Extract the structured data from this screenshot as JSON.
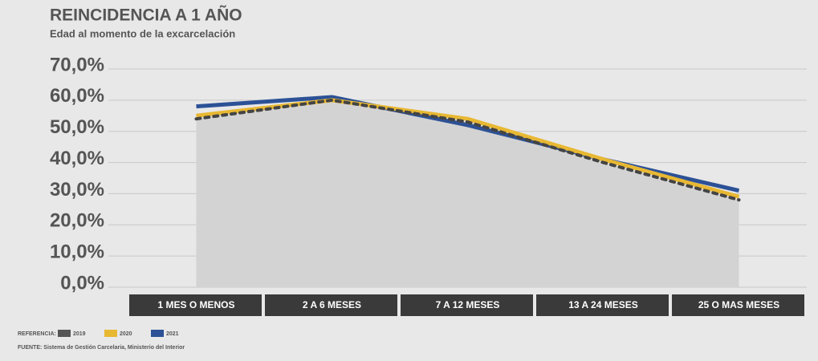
{
  "chart_data": {
    "type": "line",
    "title": "REINCIDENCIA A 1 AÑO",
    "subtitle": "Edad al momento de la excarcelación",
    "categories": [
      "1 MES O MENOS",
      "2 A 6 MESES",
      "7 A 12 MESES",
      "13 A 24 MESES",
      "25 O MAS MESES"
    ],
    "series": [
      {
        "name": "2019",
        "color": "#555555",
        "line_style": "dotted",
        "area": true,
        "values": [
          54,
          60,
          53,
          40,
          28
        ]
      },
      {
        "name": "2020",
        "color": "#e8b833",
        "line_style": "solid",
        "area": false,
        "values": [
          55,
          60,
          54,
          41,
          29
        ]
      },
      {
        "name": "2021",
        "color": "#2c5196",
        "line_style": "solid",
        "area": false,
        "values": [
          58,
          61,
          52,
          41,
          31
        ]
      }
    ],
    "ylim": [
      0,
      70
    ],
    "yticks": [
      {
        "value": 0,
        "label": "0,0%"
      },
      {
        "value": 10,
        "label": "10,0%"
      },
      {
        "value": 20,
        "label": "20,0%"
      },
      {
        "value": 30,
        "label": "30,0%"
      },
      {
        "value": 40,
        "label": "40,0%"
      },
      {
        "value": 50,
        "label": "50,0%"
      },
      {
        "value": 60,
        "label": "60,0%"
      },
      {
        "value": 70,
        "label": "70,0%"
      }
    ],
    "grid": true,
    "legend_title": "REFERENCIA:",
    "source": "FUENTE: Sistema de Gestión Carcelaria, Ministerio del Interior"
  }
}
